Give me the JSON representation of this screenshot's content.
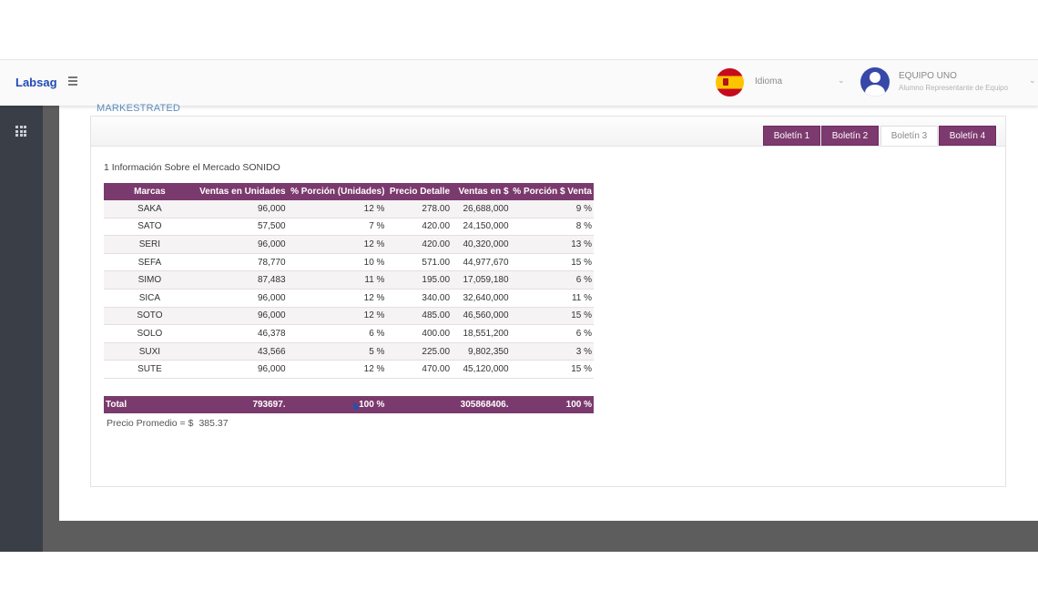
{
  "header": {
    "brand": "Labsag",
    "language_label": "Idioma",
    "user_name": "EQUIPO UNO",
    "user_role": "Alumno Representante de Equipo"
  },
  "section_title": "MARKESTRATED",
  "tabs": [
    {
      "label": "Boletín 1",
      "active": false
    },
    {
      "label": "Boletín 2",
      "active": false
    },
    {
      "label": "Boletín 3",
      "active": true
    },
    {
      "label": "Boletín 4",
      "active": false
    }
  ],
  "info_text": "1 Información Sobre el Mercado SONIDO",
  "table": {
    "headers": [
      "Marcas",
      "Ventas en Unidades",
      "% Porción (Unidades)",
      "Precio Detalle",
      "Ventas en $",
      "% Porción $ Venta"
    ],
    "rows": [
      [
        "SAKA",
        "96,000",
        "12 %",
        "278.00",
        "26,688,000",
        "9 %"
      ],
      [
        "SATO",
        "57,500",
        "7 %",
        "420.00",
        "24,150,000",
        "8 %"
      ],
      [
        "SERI",
        "96,000",
        "12 %",
        "420.00",
        "40,320,000",
        "13 %"
      ],
      [
        "SEFA",
        "78,770",
        "10 %",
        "571.00",
        "44,977,670",
        "15 %"
      ],
      [
        "SIMO",
        "87,483",
        "11 %",
        "195.00",
        "17,059,180",
        "6 %"
      ],
      [
        "SICA",
        "96,000",
        "12 %",
        "340.00",
        "32,640,000",
        "11 %"
      ],
      [
        "SOTO",
        "96,000",
        "12 %",
        "485.00",
        "46,560,000",
        "15 %"
      ],
      [
        "SOLO",
        "46,378",
        "6 %",
        "400.00",
        "18,551,200",
        "6 %"
      ],
      [
        "SUXI",
        "43,566",
        "5 %",
        "225.00",
        "9,802,350",
        "3 %"
      ],
      [
        "SUTE",
        "96,000",
        "12 %",
        "470.00",
        "45,120,000",
        "15 %"
      ]
    ],
    "total": [
      "Total",
      "793697.",
      "100 %",
      "",
      "305868406.",
      "100 %"
    ]
  },
  "avg_label": "Precio Promedio = $",
  "avg_value": "385.37"
}
